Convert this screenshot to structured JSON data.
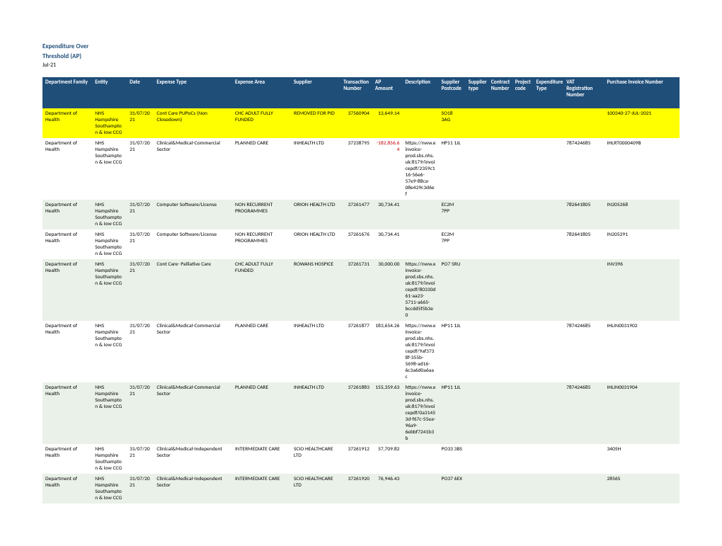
{
  "report": {
    "title_line1": "Expenditure Over",
    "title_line2": "Threshold (AP)",
    "period": "Jul-21"
  },
  "columns": [
    {
      "label": "Department Family",
      "w": 66
    },
    {
      "label": "Entity",
      "w": 46
    },
    {
      "label": "Date",
      "w": 36
    },
    {
      "label": "Expense Type",
      "w": 104
    },
    {
      "label": "Expense Area",
      "w": 78
    },
    {
      "label": "Supplier",
      "w": 66
    },
    {
      "label": "Transaction Number",
      "w": 42
    },
    {
      "label": "AP Amount",
      "w": 40
    },
    {
      "label": "Description",
      "w": 48
    },
    {
      "label": "Supplier Postcode",
      "w": 36
    },
    {
      "label": "Supplier type",
      "w": 30
    },
    {
      "label": "Contract Number",
      "w": 32
    },
    {
      "label": "Project code",
      "w": 28
    },
    {
      "label": "Expenditure Type",
      "w": 40
    },
    {
      "label": "VAT Registration Number",
      "w": 54
    },
    {
      "label": "Purchase Invoice Number",
      "w": 100
    }
  ],
  "rows": [
    {
      "highlight": true,
      "cells": [
        "Department of Health",
        "NHS Hampshire Southampton & Iow CCG",
        "31/07/2021",
        "Cont Care PUPoCs (Non Closedown)",
        "CHC ADULT FULLY FUNDED",
        "REMOVED FOR PID",
        "37560904",
        "13,649.14",
        "",
        "SO18 3AG",
        "",
        "",
        "",
        "",
        "",
        "100340-27-JUL-2021"
      ]
    },
    {
      "cells": [
        "Department of Health",
        "NHS Hampshire Southampton & Iow CCG",
        "31/07/2021",
        "Clinical&Medical-Commercial Sector",
        "PLANNED CARE",
        "INHEALTH LTD",
        "37238795",
        "-182,856.64",
        "https://nww.einvoice-prod.sbs.nhs.uk:8179/invoicepdf/2359c116-56e6-57e9-88ca-08e429c3d6ef",
        "HP11 1JL",
        "",
        "",
        "",
        "",
        "787424685",
        "IHLRT0000409B"
      ],
      "neg": true
    },
    {
      "cells": [
        "Department of Health",
        "NHS Hampshire Southampton & Iow CCG",
        "31/07/2021",
        "Computer Software/License",
        "NON RECURRENT PROGRAMMES",
        "ORION HEALTH LTD",
        "37261477",
        "30,734.41",
        "",
        "EC2M 7PP",
        "",
        "",
        "",
        "",
        "782641805",
        "IN205268"
      ]
    },
    {
      "cells": [
        "Department of Health",
        "NHS Hampshire Southampton & Iow CCG",
        "31/07/2021",
        "Computer Software/License",
        "NON RECURRENT PROGRAMMES",
        "ORION HEALTH LTD",
        "37261676",
        "30,734.41",
        "",
        "EC2M 7PP",
        "",
        "",
        "",
        "",
        "782641805",
        "IN205291"
      ]
    },
    {
      "cells": [
        "Department of Health",
        "NHS Hampshire Southampton & Iow CCG",
        "31/07/2021",
        "Cont Care- Palliative Care",
        "CHC ADULT FULLY FUNDED",
        "ROWANS HOSPICE",
        "37261731",
        "30,000.00",
        "https://nww.einvoice-prod.sbs.nhs.uk:8179/invoicepdf/80330d61-aa23-5711-a665-bccdd5f5b3e0",
        "PO7 5RU",
        "",
        "",
        "",
        "",
        "",
        "INV396"
      ]
    },
    {
      "cells": [
        "Department of Health",
        "NHS Hampshire Southampton & Iow CCG",
        "31/07/2021",
        "Clinical&Medical-Commercial Sector",
        "PLANNED CARE",
        "INHEALTH LTD",
        "37261877",
        "183,654.26",
        "https://nww.einvoice-prod.sbs.nhs.uk:8179/invoicepdf/9af3738f-355b-5698-ad16-6c3a6d0a6aac",
        "HP11 1JL",
        "",
        "",
        "",
        "",
        "787424685",
        "IHLIN0031902"
      ]
    },
    {
      "cells": [
        "Department of Health",
        "NHS Hampshire Southampton & Iow CCG",
        "31/07/2021",
        "Clinical&Medical-Commercial Sector",
        "PLANNED CARE",
        "INHEALTH LTD",
        "37261883",
        "155,359.63",
        "https://nww.einvoice-prod.sbs.nhs.uk:8179/invoicepdf/0a31453d-f67c-55ea-96a9-6ebbf7241b3b",
        "HP11 1JL",
        "",
        "",
        "",
        "",
        "787424685",
        "IHLIN0031904"
      ]
    },
    {
      "cells": [
        "Department of Health",
        "NHS Hampshire Southampton & Iow CCG",
        "31/07/2021",
        "Clinical&Medical-Independent Sector",
        "INTERMEDIATE CARE",
        "SCIO HEALTHCARE LTD",
        "37261912",
        "57,709.82",
        "",
        "PO33 3BS",
        "",
        "",
        "",
        "",
        "",
        "3405H"
      ]
    },
    {
      "cells": [
        "Department of Health",
        "NHS Hampshire Southampton & Iow CCG",
        "31/07/2021",
        "Clinical&Medical-Independent Sector",
        "INTERMEDIATE CARE",
        "SCIO HEALTHCARE LTD",
        "37261920",
        "76,946.43",
        "",
        "PO37 6EX",
        "",
        "",
        "",
        "",
        "",
        "2856S"
      ]
    }
  ]
}
